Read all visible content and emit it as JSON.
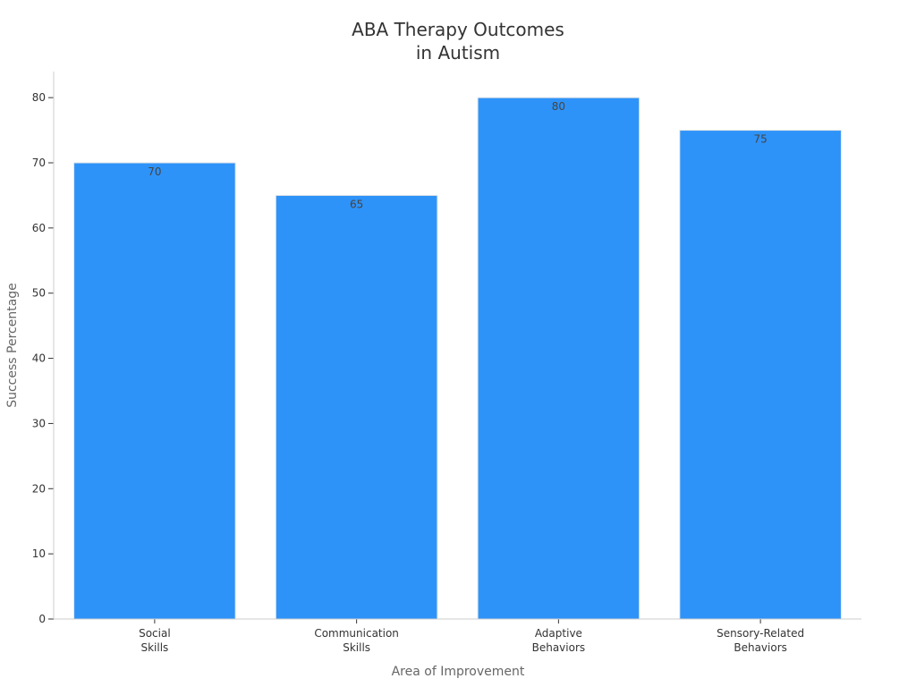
{
  "chart_data": {
    "type": "bar",
    "title": [
      "ABA Therapy Outcomes",
      "in Autism"
    ],
    "xlabel": "Area of Improvement",
    "ylabel": "Success Percentage",
    "categories": [
      [
        "Social",
        "Skills"
      ],
      [
        "Communication",
        "Skills"
      ],
      [
        "Adaptive",
        "Behaviors"
      ],
      [
        "Sensory-Related",
        "Behaviors"
      ]
    ],
    "values": [
      70,
      65,
      80,
      75
    ],
    "ylim": [
      0,
      84
    ],
    "yticks": [
      0,
      10,
      20,
      30,
      40,
      50,
      60,
      70,
      80
    ],
    "grid": false,
    "bar_color": "#2e93f9",
    "data_labels": true
  }
}
